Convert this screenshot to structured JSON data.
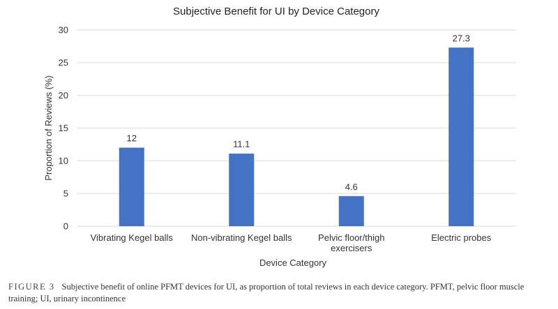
{
  "chart_data": {
    "type": "bar",
    "title": "Subjective Benefit for UI by Device Category",
    "xlabel": "Device Category",
    "ylabel": "Proportion of Reviews (%)",
    "categories": [
      [
        "Vibrating Kegel balls"
      ],
      [
        "Non-vibrating Kegel balls"
      ],
      [
        "Pelvic floor/thigh",
        "exercisers"
      ],
      [
        "Electric probes"
      ]
    ],
    "values": [
      12,
      11.1,
      4.6,
      27.3
    ],
    "value_labels": [
      "12",
      "11.1",
      "4.6",
      "27.3"
    ],
    "ylim": [
      0,
      30
    ],
    "yticks": [
      0,
      5,
      10,
      15,
      20,
      25,
      30
    ],
    "grid": true,
    "legend": "none",
    "bar_color": "#4472C4",
    "grid_color": "#d9d9d9"
  },
  "caption": {
    "label": "FIGURE 3",
    "text": "Subjective benefit of online PFMT devices for UI, as proportion of total reviews in each device category. PFMT, pelvic floor muscle training; UI, urinary incontinence"
  }
}
